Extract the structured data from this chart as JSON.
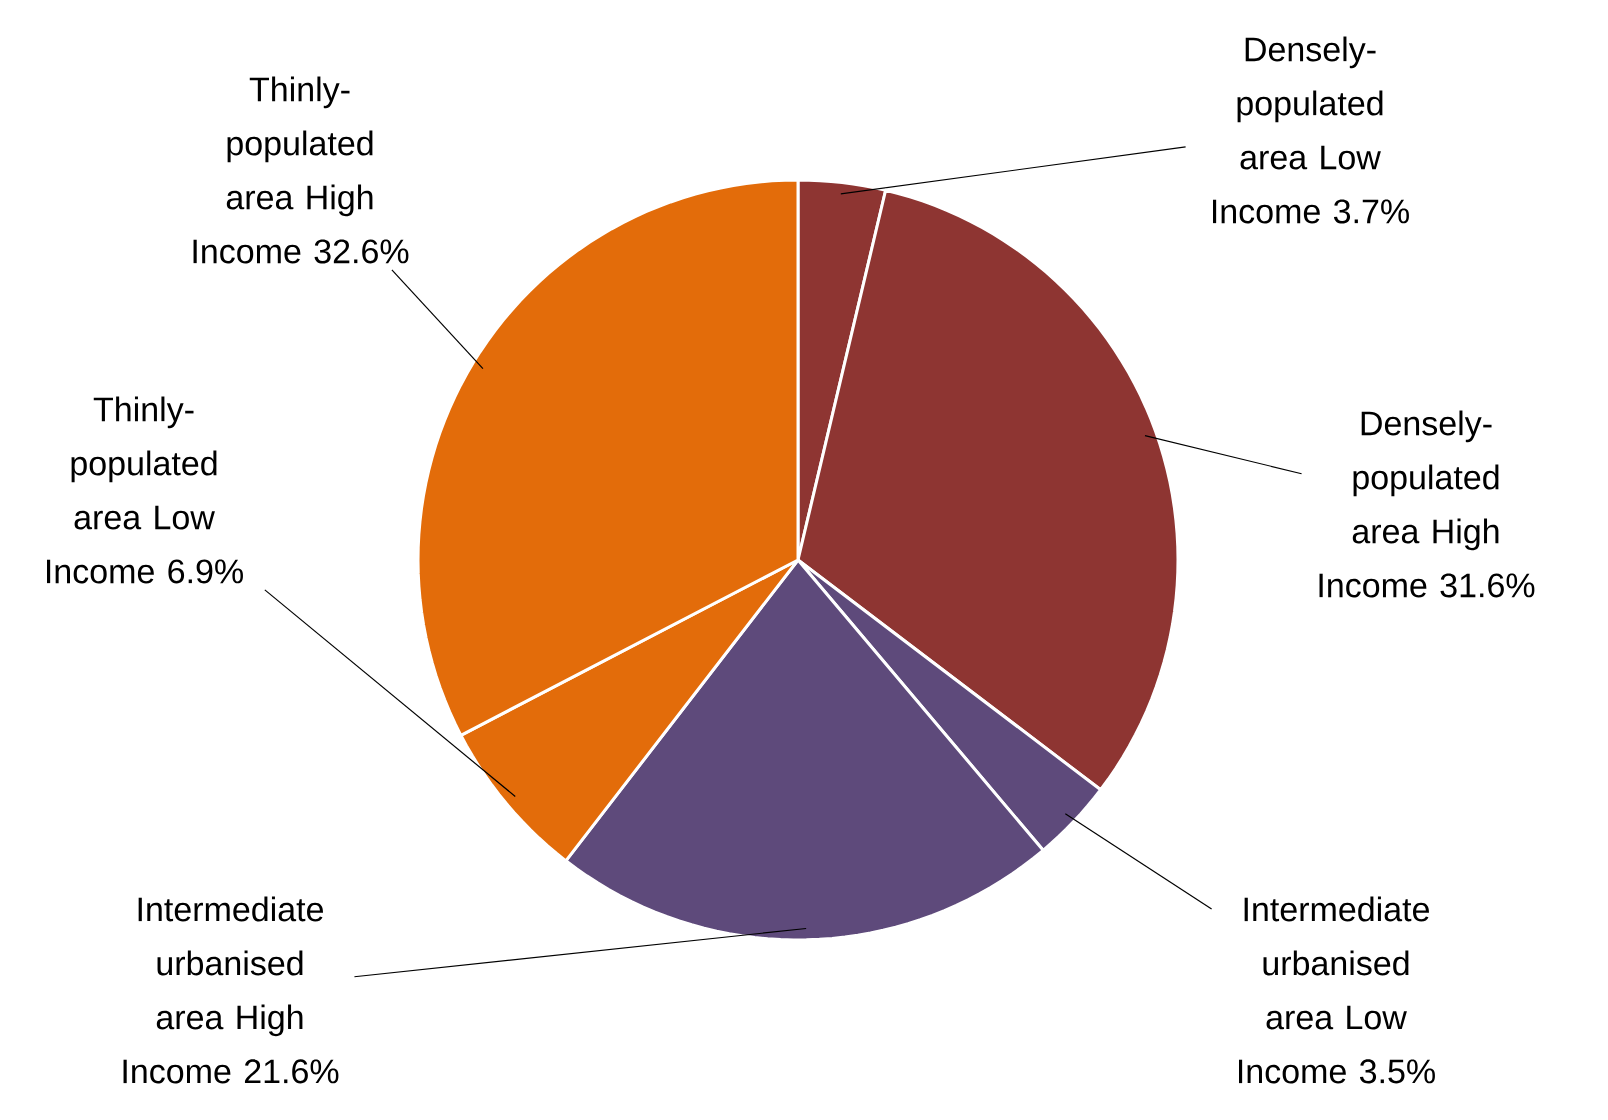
{
  "chart_data": {
    "type": "pie",
    "categories": [
      "Densely-populated area Low Income",
      "Densely-populated area High Income",
      "Intermediate urbanised area Low Income",
      "Intermediate urbanised area High Income",
      "Thinly-populated area Low Income",
      "Thinly-populated area High Income"
    ],
    "values": [
      3.7,
      31.6,
      3.5,
      21.6,
      6.9,
      32.6
    ],
    "value_labels": [
      "3.7%",
      "31.6%",
      "3.5%",
      "21.6%",
      "6.9%",
      "32.6%"
    ],
    "colors": [
      "#8e3532",
      "#8e3532",
      "#5e4a7b",
      "#5e4a7b",
      "#e36c0a",
      "#e36c0a"
    ]
  }
}
